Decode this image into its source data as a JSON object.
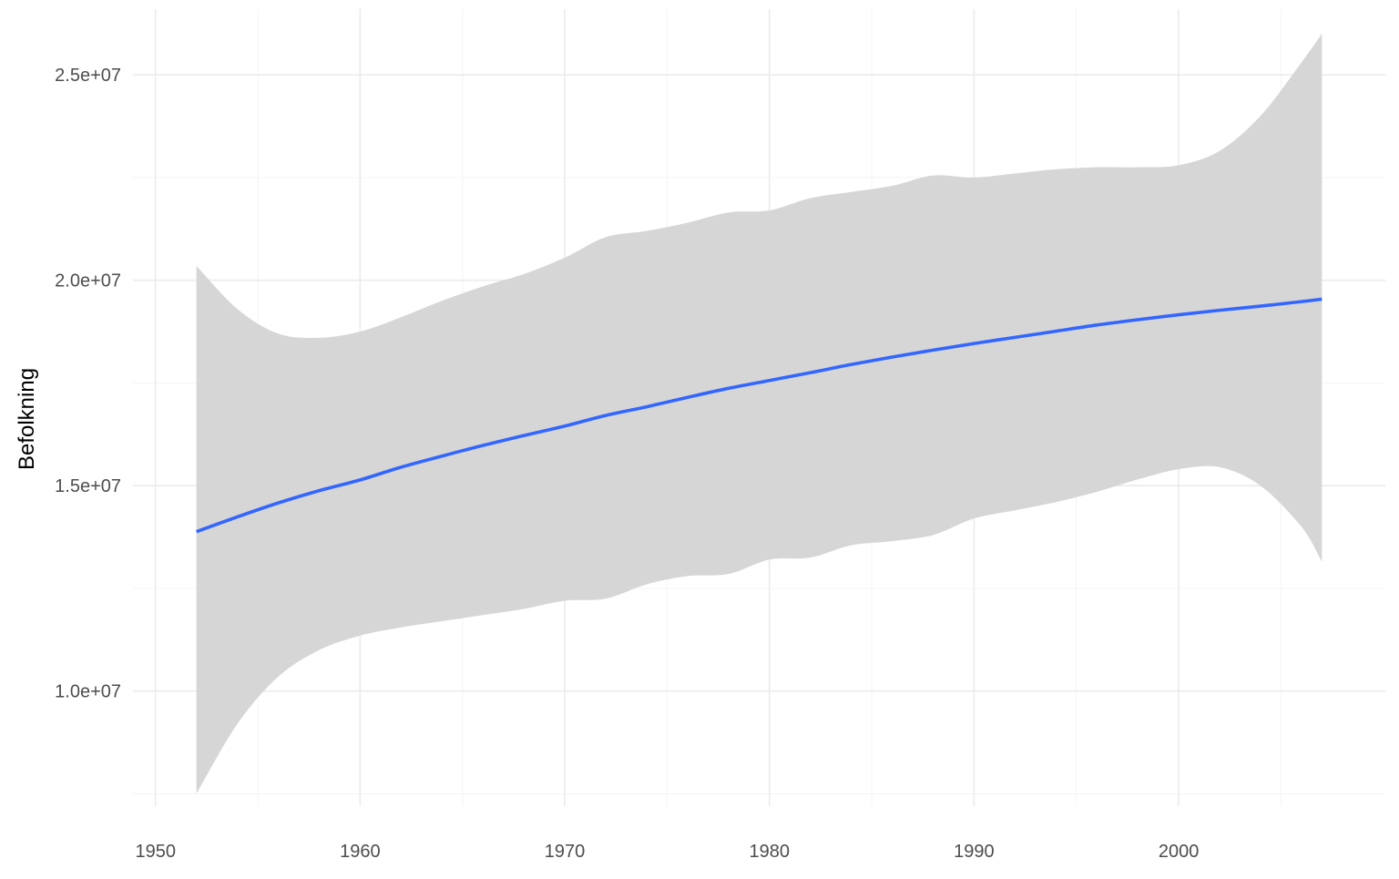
{
  "chart_data": {
    "type": "line",
    "title": "",
    "xlabel": "",
    "ylabel": "Befolkning",
    "xlim": [
      1948.9,
      2010.1
    ],
    "ylim": [
      7200000,
      26600000
    ],
    "x_ticks": [
      1950,
      1960,
      1970,
      1980,
      1990,
      2000
    ],
    "x_tick_labels": [
      "1950",
      "1960",
      "1970",
      "1980",
      "1990",
      "2000"
    ],
    "x_minor_ticks": [
      1955,
      1965,
      1975,
      1985,
      1995,
      2005
    ],
    "y_ticks": [
      10000000,
      15000000,
      20000000,
      25000000
    ],
    "y_tick_labels": [
      "1.0e+07",
      "1.5e+07",
      "2.0e+07",
      "2.5e+07"
    ],
    "y_minor_ticks": [
      7500000,
      12500000,
      17500000,
      22500000
    ],
    "grid": true,
    "legend": "none",
    "series": [
      {
        "type": "smooth",
        "color": "#3366ff",
        "band_color": "#d6d6d6",
        "x": [
          1952,
          1954,
          1956,
          1958,
          1960,
          1962,
          1964,
          1966,
          1968,
          1970,
          1972,
          1974,
          1976,
          1978,
          1980,
          1982,
          1984,
          1986,
          1988,
          1990,
          1992,
          1994,
          1996,
          1998,
          2000,
          2002,
          2004,
          2006,
          2007
        ],
        "y": [
          13880000,
          14240000,
          14580000,
          14880000,
          15140000,
          15450000,
          15720000,
          15980000,
          16220000,
          16450000,
          16710000,
          16920000,
          17150000,
          17370000,
          17560000,
          17750000,
          17950000,
          18130000,
          18300000,
          18460000,
          18610000,
          18760000,
          18910000,
          19040000,
          19160000,
          19270000,
          19370000,
          19480000,
          19540000
        ],
        "ymin": [
          7500000,
          9200000,
          10350000,
          11000000,
          11350000,
          11550000,
          11700000,
          11850000,
          12000000,
          12200000,
          12250000,
          12600000,
          12800000,
          12850000,
          13200000,
          13250000,
          13550000,
          13650000,
          13800000,
          14200000,
          14400000,
          14600000,
          14850000,
          15150000,
          15400000,
          15450000,
          15000000,
          14000000,
          13150000
        ],
        "ymax": [
          20350000,
          19300000,
          18700000,
          18600000,
          18750000,
          19100000,
          19500000,
          19850000,
          20150000,
          20550000,
          21050000,
          21200000,
          21400000,
          21650000,
          21700000,
          22000000,
          22150000,
          22300000,
          22550000,
          22500000,
          22600000,
          22700000,
          22750000,
          22750000,
          22800000,
          23150000,
          24000000,
          25300000,
          26000000
        ]
      }
    ]
  }
}
